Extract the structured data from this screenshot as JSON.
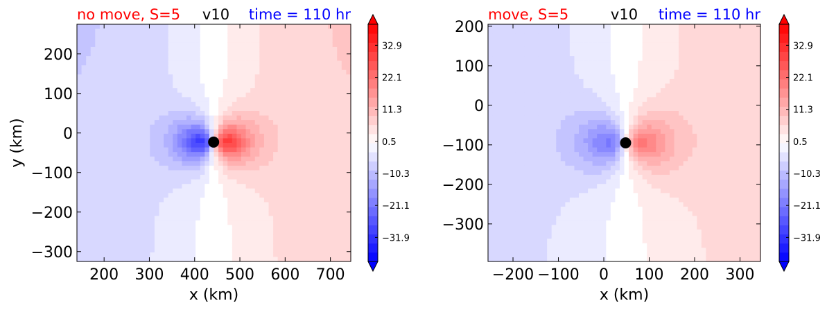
{
  "chart_data": [
    {
      "type": "heatmap",
      "field_name": "v10",
      "title_left": "no move, S=5",
      "title_center": "v10",
      "title_right": "time = 110 hr",
      "title_left_color": "#ff0000",
      "title_center_color": "#000000",
      "title_right_color": "#0000ff",
      "xlabel": "x (km)",
      "ylabel": "y (km)",
      "xlim": [
        140,
        745
      ],
      "ylim": [
        -325,
        275
      ],
      "xticks": [
        200,
        300,
        400,
        500,
        600,
        700
      ],
      "yticks": [
        200,
        100,
        0,
        -100,
        -200,
        -300
      ],
      "xtick_labels": [
        "200",
        "300",
        "400",
        "500",
        "600",
        "700"
      ],
      "ytick_labels": [
        "200",
        "100",
        "0",
        "−100",
        "−200",
        "−300"
      ],
      "center_marker": {
        "x": 442,
        "y": -23
      },
      "colorbar": {
        "vmin": -40,
        "vmax": 40,
        "ticks": [
          32.9,
          22.1,
          11.3,
          0.5,
          -10.3,
          -21.1,
          -31.9
        ],
        "tick_labels": [
          "32.9",
          "22.1",
          "11.3",
          "0.5",
          "−10.3",
          "−21.1",
          "−31.9"
        ],
        "extend": "both"
      }
    },
    {
      "type": "heatmap",
      "field_name": "v10",
      "title_left": "move, S=5",
      "title_center": "v10",
      "title_right": "time = 110 hr",
      "title_left_color": "#ff0000",
      "title_center_color": "#000000",
      "title_right_color": "#0000ff",
      "xlabel": "x (km)",
      "ylabel": "",
      "xlim": [
        -255,
        345
      ],
      "ylim": [
        -395,
        205
      ],
      "xticks": [
        -200,
        -100,
        0,
        100,
        200,
        300
      ],
      "yticks": [
        200,
        100,
        0,
        -100,
        -200,
        -300
      ],
      "xtick_labels": [
        "−200",
        "−100",
        "0",
        "100",
        "200",
        "300"
      ],
      "ytick_labels": [
        "200",
        "100",
        "0",
        "−100",
        "−200",
        "−300"
      ],
      "center_marker": {
        "x": 48,
        "y": -95
      },
      "colorbar": {
        "vmin": -40,
        "vmax": 40,
        "ticks": [
          32.9,
          22.1,
          11.3,
          0.5,
          -10.3,
          -21.1,
          -31.9
        ],
        "tick_labels": [
          "32.9",
          "22.1",
          "11.3",
          "0.5",
          "−10.3",
          "−21.1",
          "−31.9"
        ],
        "extend": "both"
      }
    }
  ]
}
